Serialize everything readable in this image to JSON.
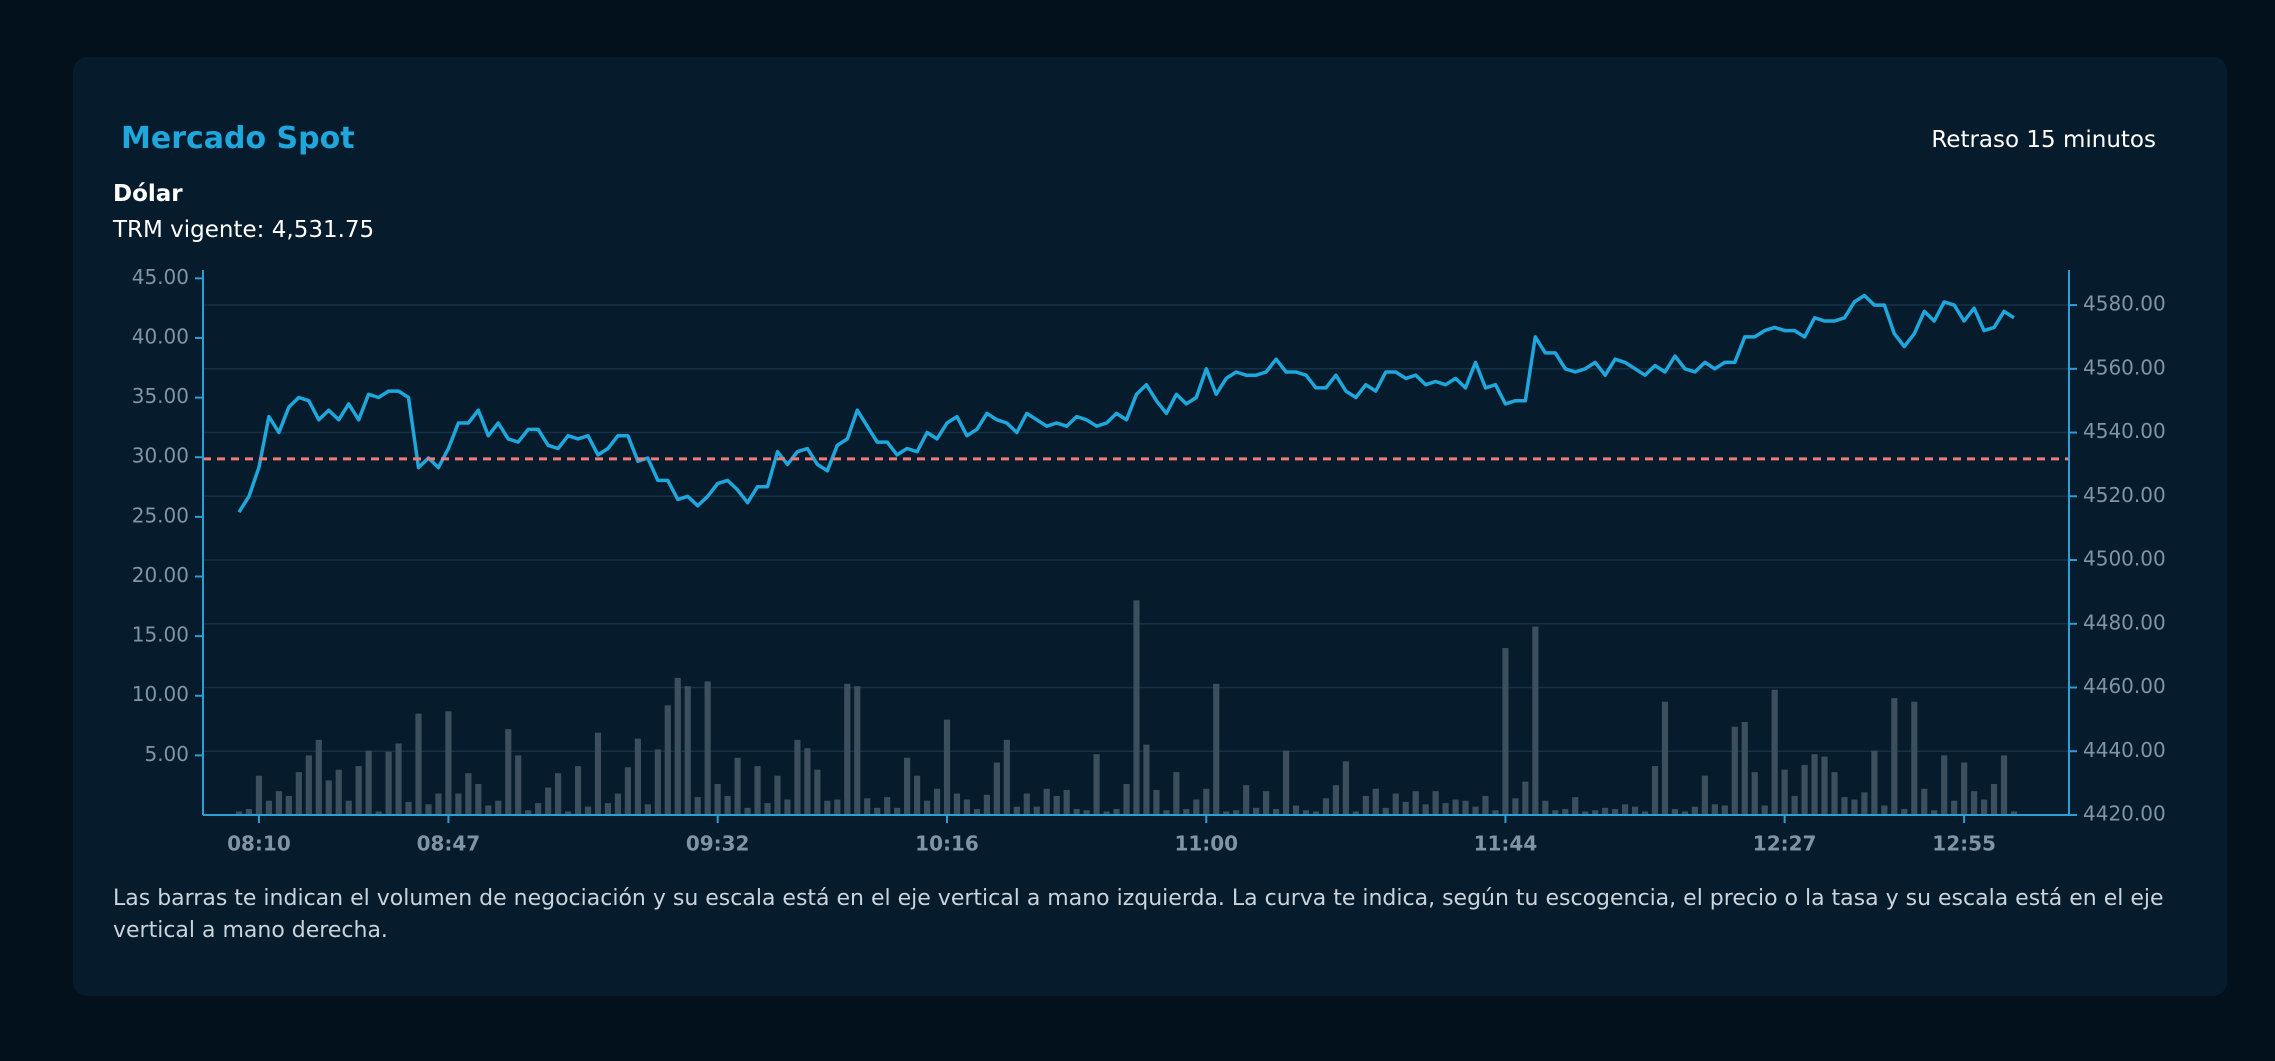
{
  "header": {
    "title": "Mercado Spot",
    "delay": "Retraso 15 minutos",
    "instrument": "Dólar",
    "trm_label": "TRM vigente:",
    "trm": {
      "value": 4531.75,
      "label": "4,531.75"
    }
  },
  "chart_data": {
    "type": "combo",
    "grid": true,
    "categories": [
      null,
      null,
      "08:10",
      null,
      null,
      null,
      null,
      null,
      null,
      null,
      null,
      null,
      null,
      null,
      null,
      null,
      null,
      null,
      null,
      null,
      null,
      "08:47",
      null,
      null,
      null,
      null,
      null,
      null,
      null,
      null,
      null,
      null,
      null,
      null,
      null,
      null,
      null,
      null,
      null,
      null,
      null,
      null,
      null,
      null,
      null,
      null,
      null,
      null,
      "09:32",
      null,
      null,
      null,
      null,
      null,
      null,
      null,
      null,
      null,
      null,
      null,
      null,
      null,
      null,
      null,
      null,
      null,
      null,
      null,
      null,
      null,
      null,
      "10:16",
      null,
      null,
      null,
      null,
      null,
      null,
      null,
      null,
      null,
      null,
      null,
      null,
      null,
      null,
      null,
      null,
      null,
      null,
      null,
      null,
      null,
      null,
      null,
      null,
      null,
      "11:00",
      null,
      null,
      null,
      null,
      null,
      null,
      null,
      null,
      null,
      null,
      null,
      null,
      null,
      null,
      null,
      null,
      null,
      null,
      null,
      null,
      null,
      null,
      null,
      null,
      null,
      null,
      null,
      null,
      null,
      "11:44",
      null,
      null,
      null,
      null,
      null,
      null,
      null,
      null,
      null,
      null,
      null,
      null,
      null,
      null,
      null,
      null,
      null,
      null,
      null,
      null,
      null,
      null,
      null,
      null,
      null,
      null,
      null,
      "12:27",
      null,
      null,
      null,
      null,
      null,
      null,
      null,
      null,
      null,
      null,
      null,
      null,
      null,
      null,
      null,
      null,
      null,
      "12:55",
      null,
      null,
      null,
      null,
      null
    ],
    "series": [
      {
        "type": "bar",
        "color": "#3b4f5e",
        "values": [
          0.3,
          0.5,
          3.3,
          1.2,
          2.0,
          1.6,
          3.6,
          5.0,
          6.3,
          2.9,
          3.8,
          1.2,
          4.1,
          5.4,
          0.3,
          5.3,
          6.0,
          1.1,
          8.5,
          0.9,
          1.8,
          8.7,
          1.8,
          3.5,
          2.6,
          0.8,
          1.2,
          7.2,
          5.0,
          0.4,
          1.0,
          2.3,
          3.5,
          0.3,
          4.1,
          0.7,
          6.9,
          1.0,
          1.8,
          4.0,
          6.4,
          0.9,
          5.5,
          9.2,
          11.5,
          10.8,
          1.5,
          11.2,
          2.6,
          1.6,
          4.8,
          0.6,
          4.1,
          1.0,
          3.3,
          1.3,
          6.3,
          5.6,
          3.8,
          1.2,
          1.3,
          11.0,
          10.8,
          1.4,
          0.6,
          1.5,
          0.6,
          4.8,
          3.3,
          1.2,
          2.2,
          8.0,
          1.8,
          1.3,
          0.5,
          1.7,
          4.4,
          6.3,
          0.7,
          1.8,
          0.7,
          2.2,
          1.6,
          2.1,
          0.5,
          0.4,
          5.1,
          0.3,
          0.5,
          2.6,
          18.0,
          5.9,
          2.1,
          0.4,
          3.6,
          0.5,
          1.3,
          2.2,
          11.0,
          0.3,
          0.4,
          2.5,
          0.6,
          2.0,
          0.5,
          5.4,
          0.8,
          0.4,
          0.3,
          1.4,
          2.5,
          4.5,
          0.3,
          1.6,
          2.2,
          0.6,
          1.8,
          1.1,
          2.0,
          0.9,
          2.0,
          1.0,
          1.3,
          1.2,
          0.7,
          1.6,
          0.4,
          14.0,
          1.4,
          2.8,
          15.8,
          1.2,
          0.4,
          0.5,
          1.5,
          0.3,
          0.4,
          0.6,
          0.5,
          0.9,
          0.7,
          0.3,
          4.1,
          9.5,
          0.5,
          0.3,
          0.7,
          3.3,
          0.9,
          0.8,
          7.4,
          7.8,
          3.6,
          0.8,
          10.5,
          3.8,
          1.6,
          4.2,
          5.1,
          4.9,
          3.6,
          1.5,
          1.3,
          1.9,
          5.4,
          0.8,
          9.8,
          0.5,
          9.5,
          2.2,
          0.4,
          5.0,
          1.2,
          4.4,
          2.0,
          1.3,
          2.6,
          5.0,
          0.3
        ]
      },
      {
        "type": "line",
        "axis": "y2",
        "color": "#1ea7dc",
        "values": [
          4515,
          4520,
          4529,
          4545,
          4540,
          4548,
          4551,
          4550,
          4544,
          4547,
          4544,
          4549,
          4544,
          4552,
          4551,
          4553,
          4553,
          4551,
          4529,
          4532,
          4529,
          4535,
          4543,
          4543,
          4547,
          4539,
          4543,
          4538,
          4537,
          4541,
          4541,
          4536,
          4535,
          4539,
          4538,
          4539,
          4533,
          4535,
          4539,
          4539,
          4531,
          4532,
          4525,
          4525,
          4519,
          4520,
          4517,
          4520,
          4524,
          4525,
          4522,
          4518,
          4523,
          4523,
          4534,
          4530,
          4534,
          4535,
          4530,
          4528,
          4536,
          4538,
          4547,
          4542,
          4537,
          4537,
          4533,
          4535,
          4534,
          4540,
          4538,
          4543,
          4545,
          4539,
          4541,
          4546,
          4544,
          4543,
          4540,
          4546,
          4544,
          4542,
          4543,
          4542,
          4545,
          4544,
          4542,
          4543,
          4546,
          4544,
          4552,
          4555,
          4550,
          4546,
          4552,
          4549,
          4551,
          4560,
          4552,
          4557,
          4559,
          4558,
          4558,
          4559,
          4563,
          4559,
          4559,
          4558,
          4554,
          4554,
          4558,
          4553,
          4551,
          4555,
          4553,
          4559,
          4559,
          4557,
          4558,
          4555,
          4556,
          4555,
          4557,
          4554,
          4562,
          4554,
          4555,
          4549,
          4550,
          4550,
          4570,
          4565,
          4565,
          4560,
          4559,
          4560,
          4562,
          4558,
          4563,
          4562,
          4560,
          4558,
          4561,
          4559,
          4564,
          4560,
          4559,
          4562,
          4560,
          4562,
          4562,
          4570,
          4570,
          4572,
          4573,
          4572,
          4572,
          4570,
          4576,
          4575,
          4575,
          4576,
          4581,
          4583,
          4580,
          4580,
          4571,
          4567,
          4571,
          4578,
          4575,
          4581,
          4580,
          4575,
          4579,
          4572,
          4573,
          4578,
          4576
        ]
      }
    ],
    "ylim": [
      0,
      45.7
    ],
    "yticks": [
      {
        "value": 5,
        "label": "5.00"
      },
      {
        "value": 10,
        "label": "10.00"
      },
      {
        "value": 15,
        "label": "15.00"
      },
      {
        "value": 20,
        "label": "20.00"
      },
      {
        "value": 25,
        "label": "25.00"
      },
      {
        "value": 30,
        "label": "30.00"
      },
      {
        "value": 35,
        "label": "35.00"
      },
      {
        "value": 40,
        "label": "40.00"
      },
      {
        "value": 45,
        "label": "45.00"
      }
    ],
    "y2lim": [
      4420,
      4591
    ],
    "y2ticks": [
      {
        "value": 4420,
        "label": "4420.00"
      },
      {
        "value": 4440,
        "label": "4440.00"
      },
      {
        "value": 4460,
        "label": "4460.00"
      },
      {
        "value": 4480,
        "label": "4480.00"
      },
      {
        "value": 4500,
        "label": "4500.00"
      },
      {
        "value": 4520,
        "label": "4520.00"
      },
      {
        "value": 4540,
        "label": "4540.00"
      },
      {
        "value": 4560,
        "label": "4560.00"
      },
      {
        "value": 4580,
        "label": "4580.00"
      }
    ]
  },
  "footnote": "Las barras te indican el volumen de negociación y su escala está en el eje vertical a mano izquierda. La curva te indica, según tu escogencia, el precio o la tasa y su escala está en el eje vertical a mano derecha."
}
